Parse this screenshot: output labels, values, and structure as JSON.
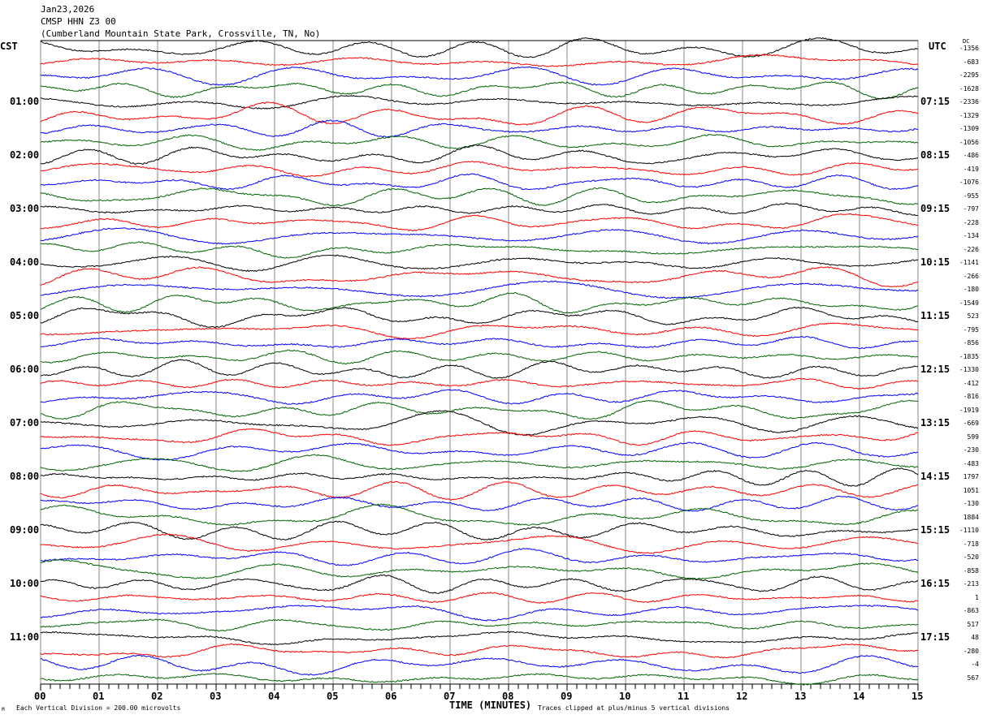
{
  "header": {
    "date": "Jan23,2026",
    "station": "CMSP HHN Z3 00",
    "location": "(Cumberland Mountain State Park, Crossville, TN, No)"
  },
  "chart_data": {
    "type": "line",
    "title": "CMSP HHN Z3 00 helicorder",
    "xlabel": "TIME (MINUTES)",
    "x_ticks": [
      "00",
      "01",
      "02",
      "03",
      "04",
      "05",
      "06",
      "07",
      "08",
      "09",
      "10",
      "11",
      "12",
      "13",
      "14",
      "15"
    ],
    "xlim": [
      0,
      15
    ],
    "left_axis_label": "CST",
    "right_axis_label": "UTC",
    "dc_label": "DC",
    "cst_hours": [
      "01:00",
      "02:00",
      "03:00",
      "04:00",
      "05:00",
      "06:00",
      "07:00",
      "08:00",
      "09:00",
      "10:00",
      "11:00"
    ],
    "utc_hours": [
      "07:15",
      "08:15",
      "09:15",
      "10:15",
      "11:15",
      "12:15",
      "13:15",
      "14:15",
      "15:15",
      "16:15",
      "17:15"
    ],
    "trace_colors": [
      "#000000",
      "#ff0000",
      "#0000ff",
      "#006400"
    ],
    "dc_offsets": [
      "-1356",
      "-683",
      "-2295",
      "-1628",
      "-2336",
      "-1329",
      "-1309",
      "-1056",
      "-486",
      "-419",
      "-1076",
      "-955",
      "-797",
      "-228",
      "-134",
      "-226",
      "-1141",
      "-266",
      "-180",
      "-1549",
      "523",
      "-795",
      "-856",
      "-1835",
      "-1330",
      "-412",
      "-816",
      "-1919",
      "-669",
      "599",
      "-230",
      "-483",
      "1797",
      "1051",
      "-130",
      "1884",
      "-1110",
      "-718",
      "-520",
      "-858",
      "-213",
      "1",
      "-863",
      "517",
      "48",
      "-280",
      "-4",
      "567"
    ],
    "scale_note": "Each Vertical Division =  200.00 microvolts",
    "clip_note": "Traces clipped at plus/minus 5 vertical divisions",
    "corner_mark": "M"
  }
}
